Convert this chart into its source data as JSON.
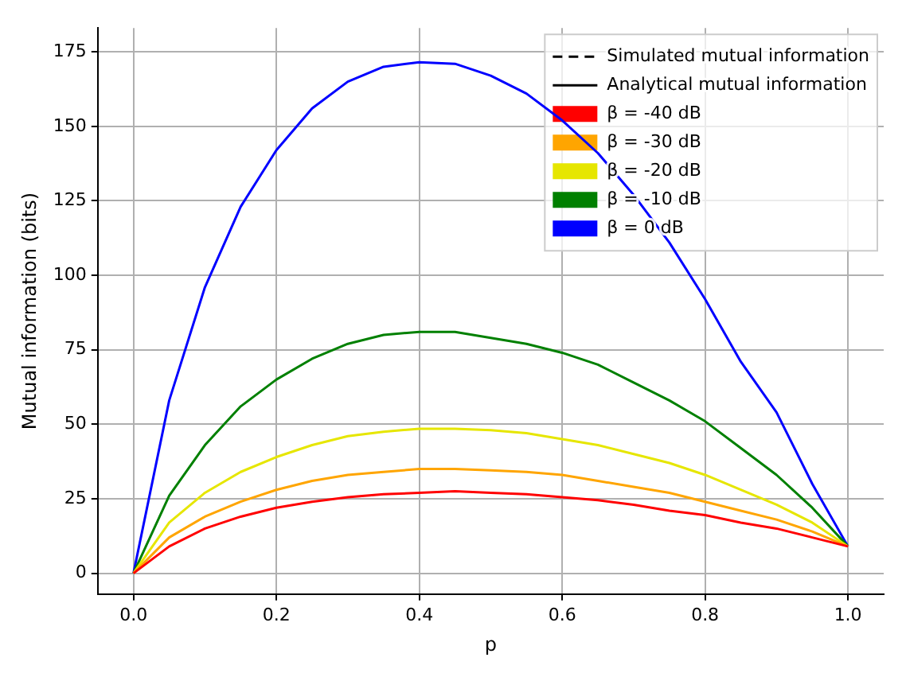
{
  "chart_data": {
    "type": "line",
    "xlabel": "p",
    "ylabel": "Mutual information (bits)",
    "x": [
      0,
      0.05,
      0.1,
      0.15,
      0.2,
      0.25,
      0.3,
      0.35,
      0.4,
      0.45,
      0.5,
      0.55,
      0.6,
      0.65,
      0.7,
      0.75,
      0.8,
      0.85,
      0.9,
      0.95,
      1.0
    ],
    "series": [
      {
        "name": "Simulated mutual information",
        "color": "#000000",
        "line_style": "dashed",
        "values": [
          null,
          null,
          null,
          null,
          null,
          null,
          null,
          null,
          null,
          null,
          null,
          null,
          null,
          null,
          null,
          null,
          null,
          null,
          null,
          null,
          null
        ]
      },
      {
        "name": "Analytical mutual information",
        "color": "#000000",
        "line_style": "solid",
        "values": [
          null,
          null,
          null,
          null,
          null,
          null,
          null,
          null,
          null,
          null,
          null,
          null,
          null,
          null,
          null,
          null,
          null,
          null,
          null,
          null,
          null
        ]
      },
      {
        "name": "β = -40 dB",
        "color": "#ff0000",
        "values": [
          0,
          9,
          15,
          19,
          22,
          24,
          25.5,
          26.5,
          27,
          27.5,
          27,
          26.5,
          25.5,
          24.5,
          23,
          21,
          19.5,
          17,
          15,
          12,
          9
        ]
      },
      {
        "name": "β = -30 dB",
        "color": "#ffa500",
        "values": [
          0,
          12,
          19,
          24,
          28,
          31,
          33,
          34,
          35,
          35,
          34.5,
          34,
          33,
          31,
          29,
          27,
          24,
          21,
          18,
          14,
          9
        ]
      },
      {
        "name": "β = -20 dB",
        "color": "#e6e600",
        "values": [
          0,
          17,
          27,
          34,
          39,
          43,
          46,
          47.5,
          48.5,
          48.5,
          48,
          47,
          45,
          43,
          40,
          37,
          33,
          28,
          23,
          17,
          9
        ]
      },
      {
        "name": "β = -10 dB",
        "color": "#008000",
        "values": [
          0,
          26,
          43,
          56,
          65,
          72,
          77,
          80,
          81,
          81,
          79,
          77,
          74,
          70,
          64,
          58,
          51,
          42,
          33,
          22,
          9
        ]
      },
      {
        "name": "β = 0 dB",
        "color": "#0000ff",
        "values": [
          0,
          58,
          96,
          123,
          142,
          156,
          165,
          170,
          171.5,
          171,
          167,
          161,
          152,
          141,
          127,
          111,
          92,
          71,
          54,
          30,
          9
        ]
      }
    ],
    "xlim": [
      -0.05,
      1.05
    ],
    "xticks": [
      {
        "value": 0,
        "label": "0.0"
      },
      {
        "value": 0.2,
        "label": "0.2"
      },
      {
        "value": 0.4,
        "label": "0.4"
      },
      {
        "value": 0.6,
        "label": "0.6"
      },
      {
        "value": 0.8,
        "label": "0.8"
      },
      {
        "value": 1,
        "label": "1.0"
      }
    ],
    "ylim": [
      -7,
      183
    ],
    "yticks": [
      0,
      25,
      50,
      75,
      100,
      125,
      150,
      175
    ],
    "grid": true,
    "legend": "top right",
    "marker": "none"
  }
}
